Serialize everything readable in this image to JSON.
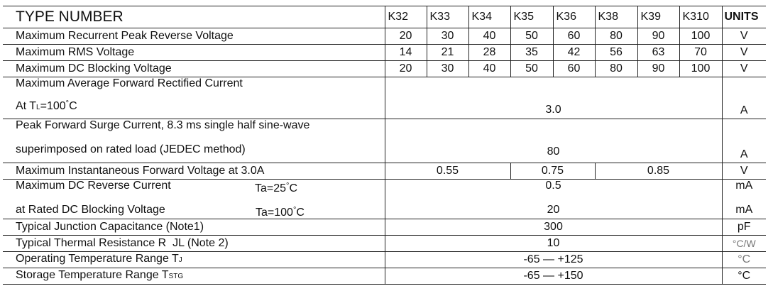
{
  "header": {
    "title": "TYPE NUMBER",
    "types": [
      "K32",
      "K33",
      "K34",
      "K35",
      "K36",
      "K38",
      "K39",
      "K310"
    ],
    "units": "UNITS"
  },
  "rows": {
    "vrrm": {
      "label": "Maximum Recurrent Peak Reverse Voltage",
      "values": [
        "20",
        "30",
        "40",
        "50",
        "60",
        "80",
        "90",
        "100"
      ],
      "unit": "V"
    },
    "vrms": {
      "label": "Maximum RMS Voltage",
      "values": [
        "14",
        "21",
        "28",
        "35",
        "42",
        "56",
        "63",
        "70"
      ],
      "unit": "V"
    },
    "vdc": {
      "label": "Maximum DC Blocking Voltage",
      "values": [
        "20",
        "30",
        "40",
        "50",
        "60",
        "80",
        "90",
        "100"
      ],
      "unit": "V"
    },
    "io": {
      "label1": "Maximum Average Forward Rectified Current",
      "label2a": "At T",
      "label2sub": "L",
      "label2b": "=100",
      "deg": "°",
      "label2c": "C",
      "value": "3.0",
      "unit": "A"
    },
    "ifsm": {
      "label1": "Peak Forward Surge Current, 8.3 ms single half sine-wave",
      "label2": "superimposed on rated load (JEDEC method)",
      "value": "80",
      "unit": "A"
    },
    "vf": {
      "label": "Maximum Instantaneous Forward Voltage at 3.0A",
      "values": [
        "0.55",
        "0.75",
        "0.85"
      ],
      "unit": "V"
    },
    "ir": {
      "label1": "Maximum DC Reverse Current",
      "cond1": "Ta=25",
      "label2": "at Rated DC Blocking Voltage",
      "cond2": "Ta=100",
      "deg": "°",
      "c": "C",
      "value1": "0.5",
      "value2": "20",
      "unit1": "mA",
      "unit2": "mA"
    },
    "cj": {
      "label": "Typical Junction Capacitance (Note1)",
      "value": "300",
      "unit": "pF"
    },
    "rth": {
      "label": "Typical Thermal Resistance R  JL (Note 2)",
      "value": "10",
      "unit": "°C/W"
    },
    "tj": {
      "label": "Operating Temperature Range T",
      "sub": "J",
      "value": "-65 — +125",
      "unit": "°C"
    },
    "tstg": {
      "label": "Storage Temperature Range T",
      "sub": "STG",
      "value": "-65 — +150",
      "unit": "°C"
    }
  }
}
